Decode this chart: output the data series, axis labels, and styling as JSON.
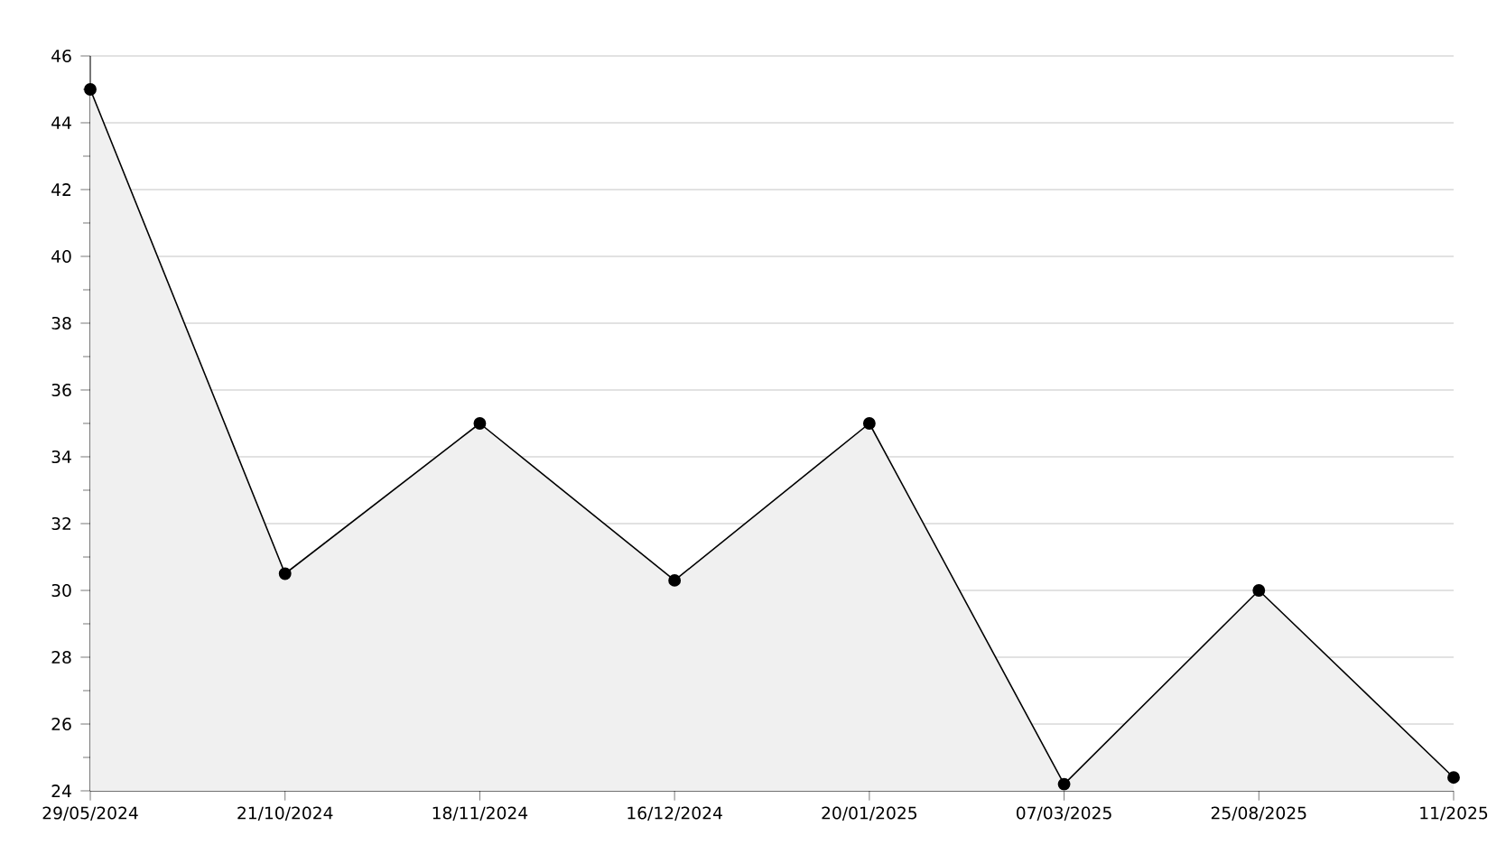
{
  "chart_data": {
    "type": "area",
    "categories": [
      "29/05/2024",
      "21/10/2024",
      "18/11/2024",
      "16/12/2024",
      "20/01/2025",
      "07/03/2025",
      "25/08/2025",
      "11/2025"
    ],
    "values": [
      45,
      30.5,
      35,
      30.3,
      35,
      24.2,
      30,
      24.4
    ],
    "color": "#000000",
    "ylim": [
      24,
      46
    ],
    "yticks": [
      24,
      26,
      28,
      30,
      32,
      34,
      36,
      38,
      40,
      42,
      44,
      46
    ],
    "grid": "y",
    "marker": "circle",
    "line_style": "solid"
  }
}
